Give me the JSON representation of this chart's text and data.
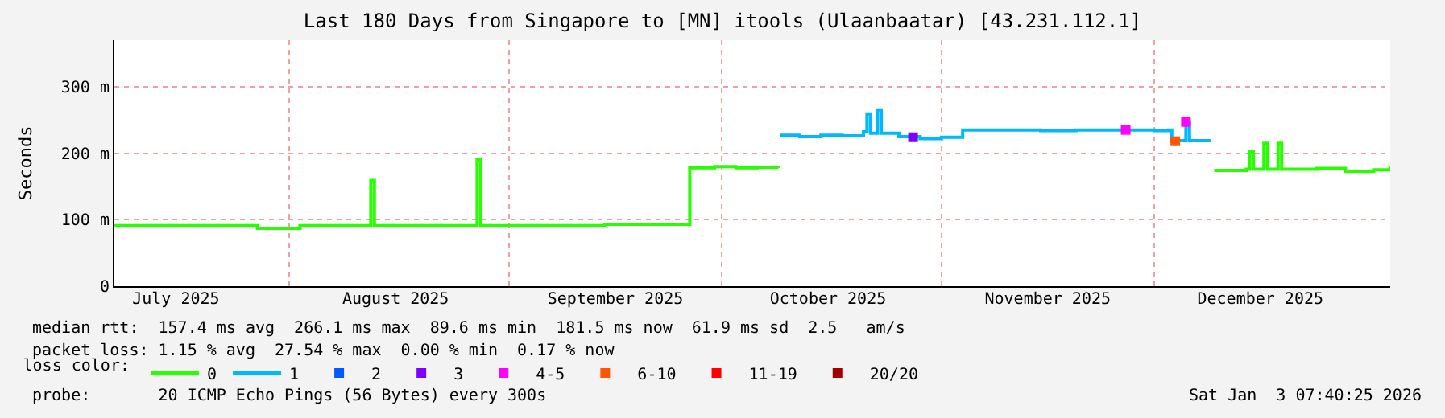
{
  "chart_data": {
    "type": "step",
    "title": "Last 180 Days from Singapore to [MN] itools (Ulaanbaatar) [43.231.112.1]",
    "ylabel": "Seconds",
    "legend_title": "loss color:",
    "xlim": [
      "2025-07-07T07:40",
      "2026-01-03T07:40"
    ],
    "xticks": [
      {
        "value": "2025-07-16",
        "label": "July 2025"
      },
      {
        "value": "2025-08-01",
        "label": null
      },
      {
        "value": "2025-08-16",
        "label": "August 2025"
      },
      {
        "value": "2025-09-01",
        "label": null
      },
      {
        "value": "2025-09-16",
        "label": "September 2025"
      },
      {
        "value": "2025-10-01",
        "label": null
      },
      {
        "value": "2025-10-16",
        "label": "October 2025"
      },
      {
        "value": "2025-11-01",
        "label": null
      },
      {
        "value": "2025-11-16",
        "label": "November 2025"
      },
      {
        "value": "2025-12-01",
        "label": null
      },
      {
        "value": "2025-12-16",
        "label": "December 2025"
      }
    ],
    "ylim": [
      0,
      370
    ],
    "yticks": [
      0,
      {
        "value": 100,
        "label": "100 m"
      },
      {
        "value": 200,
        "label": "200 m"
      },
      {
        "value": 300,
        "label": "300 m"
      }
    ],
    "grid": true,
    "legend": "bottom",
    "series": [
      {
        "name": "0",
        "color": "#26ff00",
        "x": [
          "2025-07-07T08:00",
          "2025-07-15",
          "2025-07-20",
          "2025-07-27",
          "2025-07-27T12:00",
          "2025-08-02",
          "2025-08-02T12:00",
          "2025-08-08",
          "2025-08-12",
          "2025-08-12T12:00",
          "2025-08-13",
          "2025-08-20",
          "2025-08-27",
          "2025-08-27T12:00",
          "2025-08-28",
          "2025-09-05",
          "2025-09-14",
          "2025-09-14T12:00",
          "2025-09-20",
          "2025-09-26",
          "2025-09-26T12:00",
          "2025-09-30",
          "2025-10-03",
          "2025-10-06",
          "2025-10-09",
          "2025-10-09T12:00",
          "2025-12-09T12:00",
          "2025-12-14",
          "2025-12-14T12:00",
          "2025-12-15",
          "2025-12-16T12:00",
          "2025-12-17",
          "2025-12-18T12:00",
          "2025-12-19",
          "2025-12-24",
          "2025-12-28",
          "2026-01-01",
          "2026-01-03T07:00"
        ],
        "values": [
          91,
          91,
          91,
          91,
          87,
          87,
          91,
          91,
          91,
          159,
          91,
          91,
          91,
          190,
          91,
          91,
          91,
          93,
          93,
          93,
          178,
          180,
          178,
          179,
          178,
          null,
          174,
          176,
          202,
          176,
          215,
          176,
          215,
          176,
          177,
          173,
          175,
          180
        ]
      },
      {
        "name": "1",
        "color": "#00b8ff",
        "x": [
          "2025-10-09T06:00",
          "2025-10-12",
          "2025-10-15",
          "2025-10-18",
          "2025-10-21",
          "2025-10-21T12:00",
          "2025-10-22",
          "2025-10-23",
          "2025-10-23T12:00",
          "2025-10-26",
          "2025-10-29",
          "2025-11-01",
          "2025-11-04",
          "2025-11-10",
          "2025-11-15",
          "2025-11-20",
          "2025-11-25",
          "2025-12-01",
          "2025-12-03",
          "2025-12-03T12:00",
          "2025-12-05",
          "2025-12-05T12:00",
          "2025-12-06",
          "2025-12-09"
        ],
        "values": [
          227,
          225,
          227,
          226,
          232,
          259,
          230,
          265,
          230,
          225,
          222,
          224,
          235,
          235,
          234,
          235,
          235,
          234,
          235,
          219,
          219,
          247,
          219,
          219
        ]
      },
      {
        "name": "2",
        "color": "#0059ff",
        "type": "scatter"
      },
      {
        "name": "3",
        "color": "#7e00ff",
        "type": "scatter",
        "x": [
          "2025-10-28"
        ],
        "values": [
          224
        ]
      },
      {
        "name": "4-5",
        "color": "#ff00ff",
        "type": "scatter",
        "x": [
          "2025-11-27",
          "2025-12-05T12:00"
        ],
        "values": [
          235,
          247
        ]
      },
      {
        "name": "6-10",
        "color": "#ff5500",
        "type": "scatter",
        "x": [
          "2025-12-04"
        ],
        "values": [
          218
        ]
      },
      {
        "name": "11-19",
        "color": "#ff0000",
        "type": "scatter"
      },
      {
        "name": "20/20",
        "color": "#a10000",
        "type": "scatter"
      }
    ],
    "annotations": [
      "median rtt:  157.4 ms avg  266.1 ms max  89.6 ms min  181.5 ms now  61.9 ms sd  2.5   am/s",
      "packet loss: 1.15 % avg  27.54 % max  0.00 % min  0.17 % now",
      "probe:       20 ICMP Echo Pings (56 Bytes) every 300s",
      "Sat Jan  3 07:40:25 2026"
    ]
  }
}
